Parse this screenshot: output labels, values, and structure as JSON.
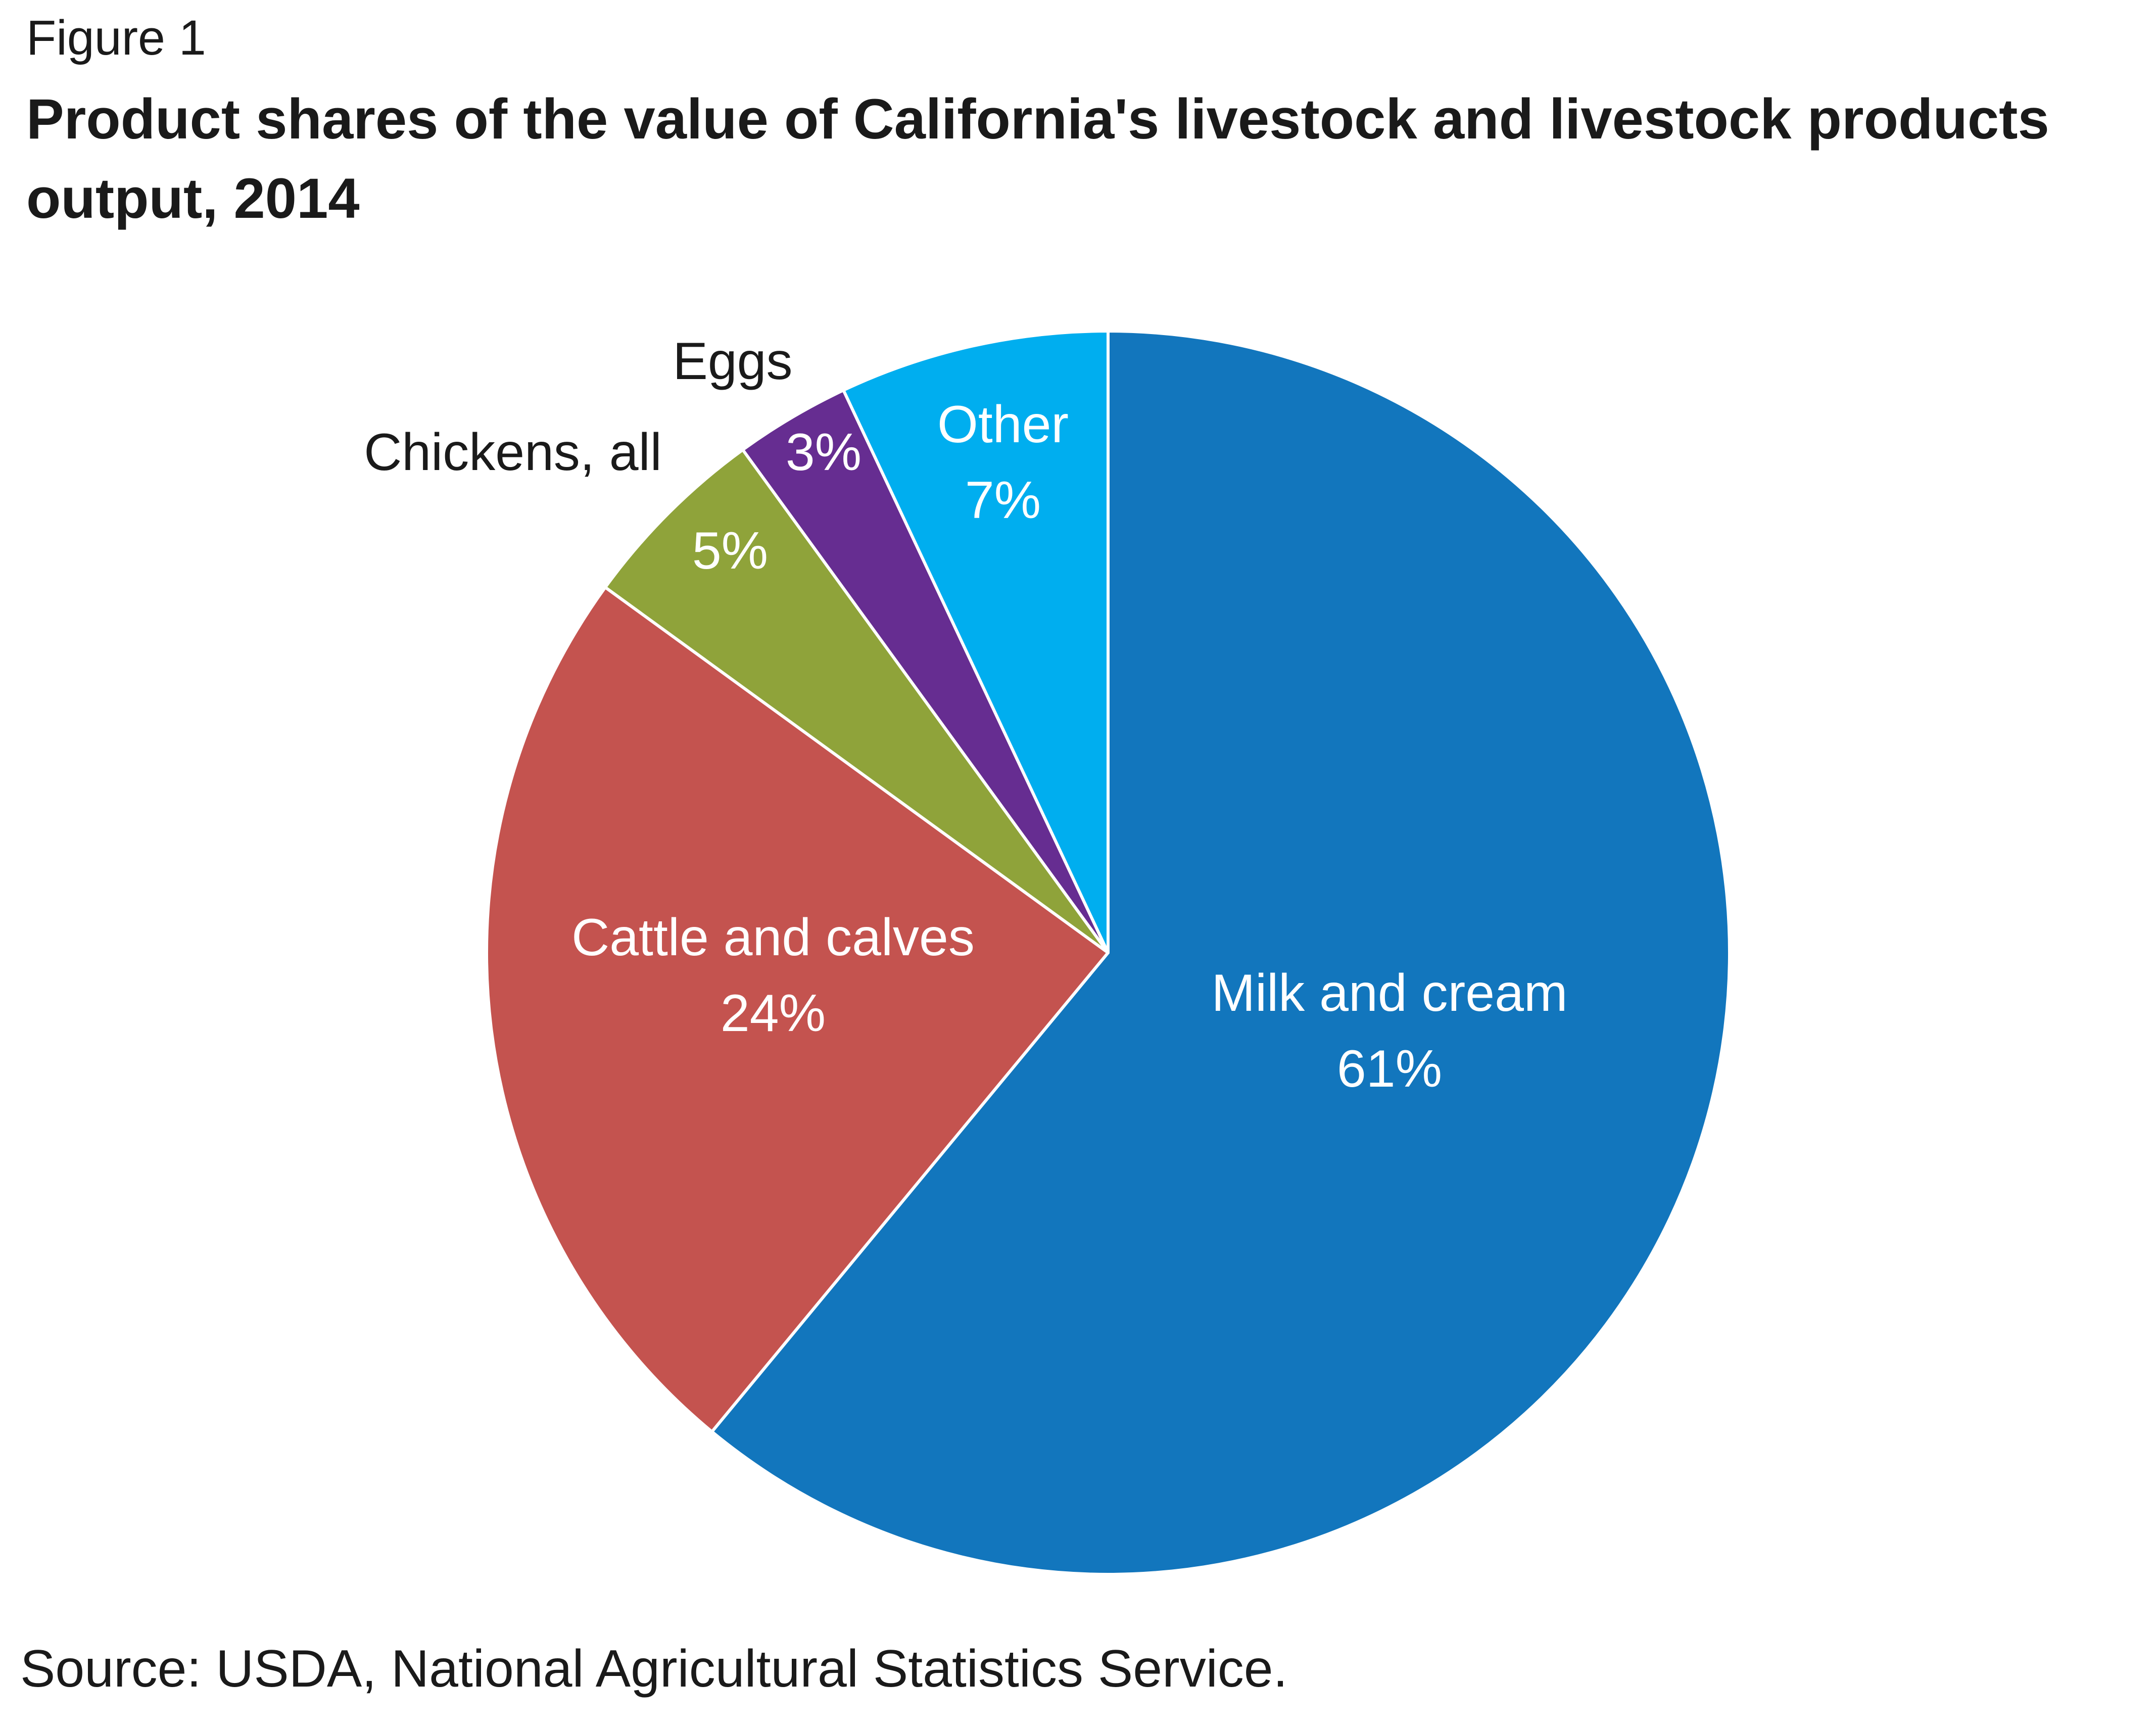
{
  "figure_label": "Figure 1",
  "title": "Product shares of the value of California's livestock and livestock products output, 2014",
  "source": "Source: USDA, National Agricultural Statistics Service.",
  "chart_data": {
    "type": "pie",
    "title": "Product shares of the value of California's livestock and livestock products output, 2014",
    "start": "12 o'clock",
    "direction": "clockwise",
    "slices": [
      {
        "label": "Milk and cream",
        "value": 61,
        "value_label": "61%",
        "color": "#1276bd",
        "text_color": "#ffffff",
        "label_placement": "inside"
      },
      {
        "label": "Cattle and calves",
        "value": 24,
        "value_label": "24%",
        "color": "#c4534f",
        "text_color": "#ffffff",
        "label_placement": "inside"
      },
      {
        "label": "Chickens, all",
        "value": 5,
        "value_label": "5%",
        "color": "#8fa33a",
        "text_color": "#1a1a1a",
        "label_placement": "outside"
      },
      {
        "label": "Eggs",
        "value": 3,
        "value_label": "3%",
        "color": "#662d91",
        "text_color": "#1a1a1a",
        "label_placement": "outside"
      },
      {
        "label": "Other",
        "value": 7,
        "value_label": "7%",
        "color": "#00aeef",
        "text_color": "#ffffff",
        "label_placement": "inside"
      }
    ],
    "slice_border_color": "#ffffff",
    "inside_value_color": "#ffffff"
  }
}
